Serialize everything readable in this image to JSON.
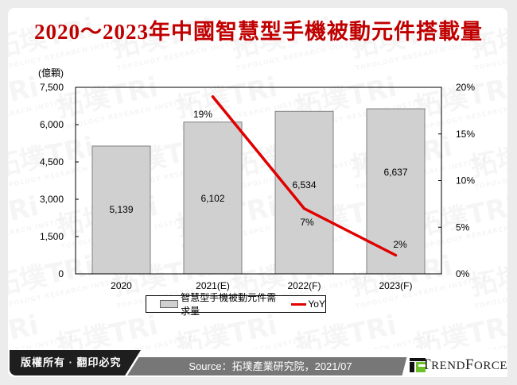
{
  "header": {
    "title": "2020～2023年中國智慧型手機被動元件搭載量"
  },
  "watermark": {
    "text": "拓墣TRi",
    "subtext": "TOPOLOGY RESEARCH INSTITUTE"
  },
  "colors": {
    "title": "#c00000",
    "bar_fill": "#d0d0d0",
    "bar_stroke": "#808080",
    "line": "#e00000",
    "footer_dark": "#1e1e1e",
    "footer_mid": "#777777",
    "logo_green": "#6fbf2a"
  },
  "chart_data": {
    "type": "bar",
    "title": "2020～2023年中國智慧型手機被動元件搭載量",
    "categories": [
      "2020",
      "2021(E)",
      "2022(F)",
      "2023(F)"
    ],
    "series": [
      {
        "name": "智慧型手機被動元件需求量",
        "type": "bar",
        "axis": "left",
        "values": [
          5139,
          6102,
          6534,
          6637
        ],
        "labels": [
          "5,139",
          "6,102",
          "6,534",
          "6,637"
        ]
      },
      {
        "name": "YoY",
        "type": "line",
        "axis": "right",
        "values": [
          null,
          19,
          7,
          2
        ],
        "labels": [
          "",
          "19%",
          "7%",
          "2%"
        ]
      }
    ],
    "ylabel": "(億顆)",
    "ylim": [
      0,
      7500
    ],
    "yticks": [
      "0",
      "1,500",
      "3,000",
      "4,500",
      "6,000",
      "7,500"
    ],
    "y2lim": [
      0,
      20
    ],
    "y2ticks": [
      "0%",
      "5%",
      "10%",
      "15%",
      "20%"
    ],
    "grid": false,
    "legend_position": "bottom"
  },
  "legend": {
    "bar_label": "智慧型手機被動元件需求量",
    "line_label": "YoY"
  },
  "footer": {
    "copyright": "版權所有 · 翻印必究",
    "source": "Source：拓墣產業研究院，2021/07",
    "logo_first": "T",
    "logo_rest1": "REND",
    "logo_second": "F",
    "logo_rest2": "ORCE"
  }
}
